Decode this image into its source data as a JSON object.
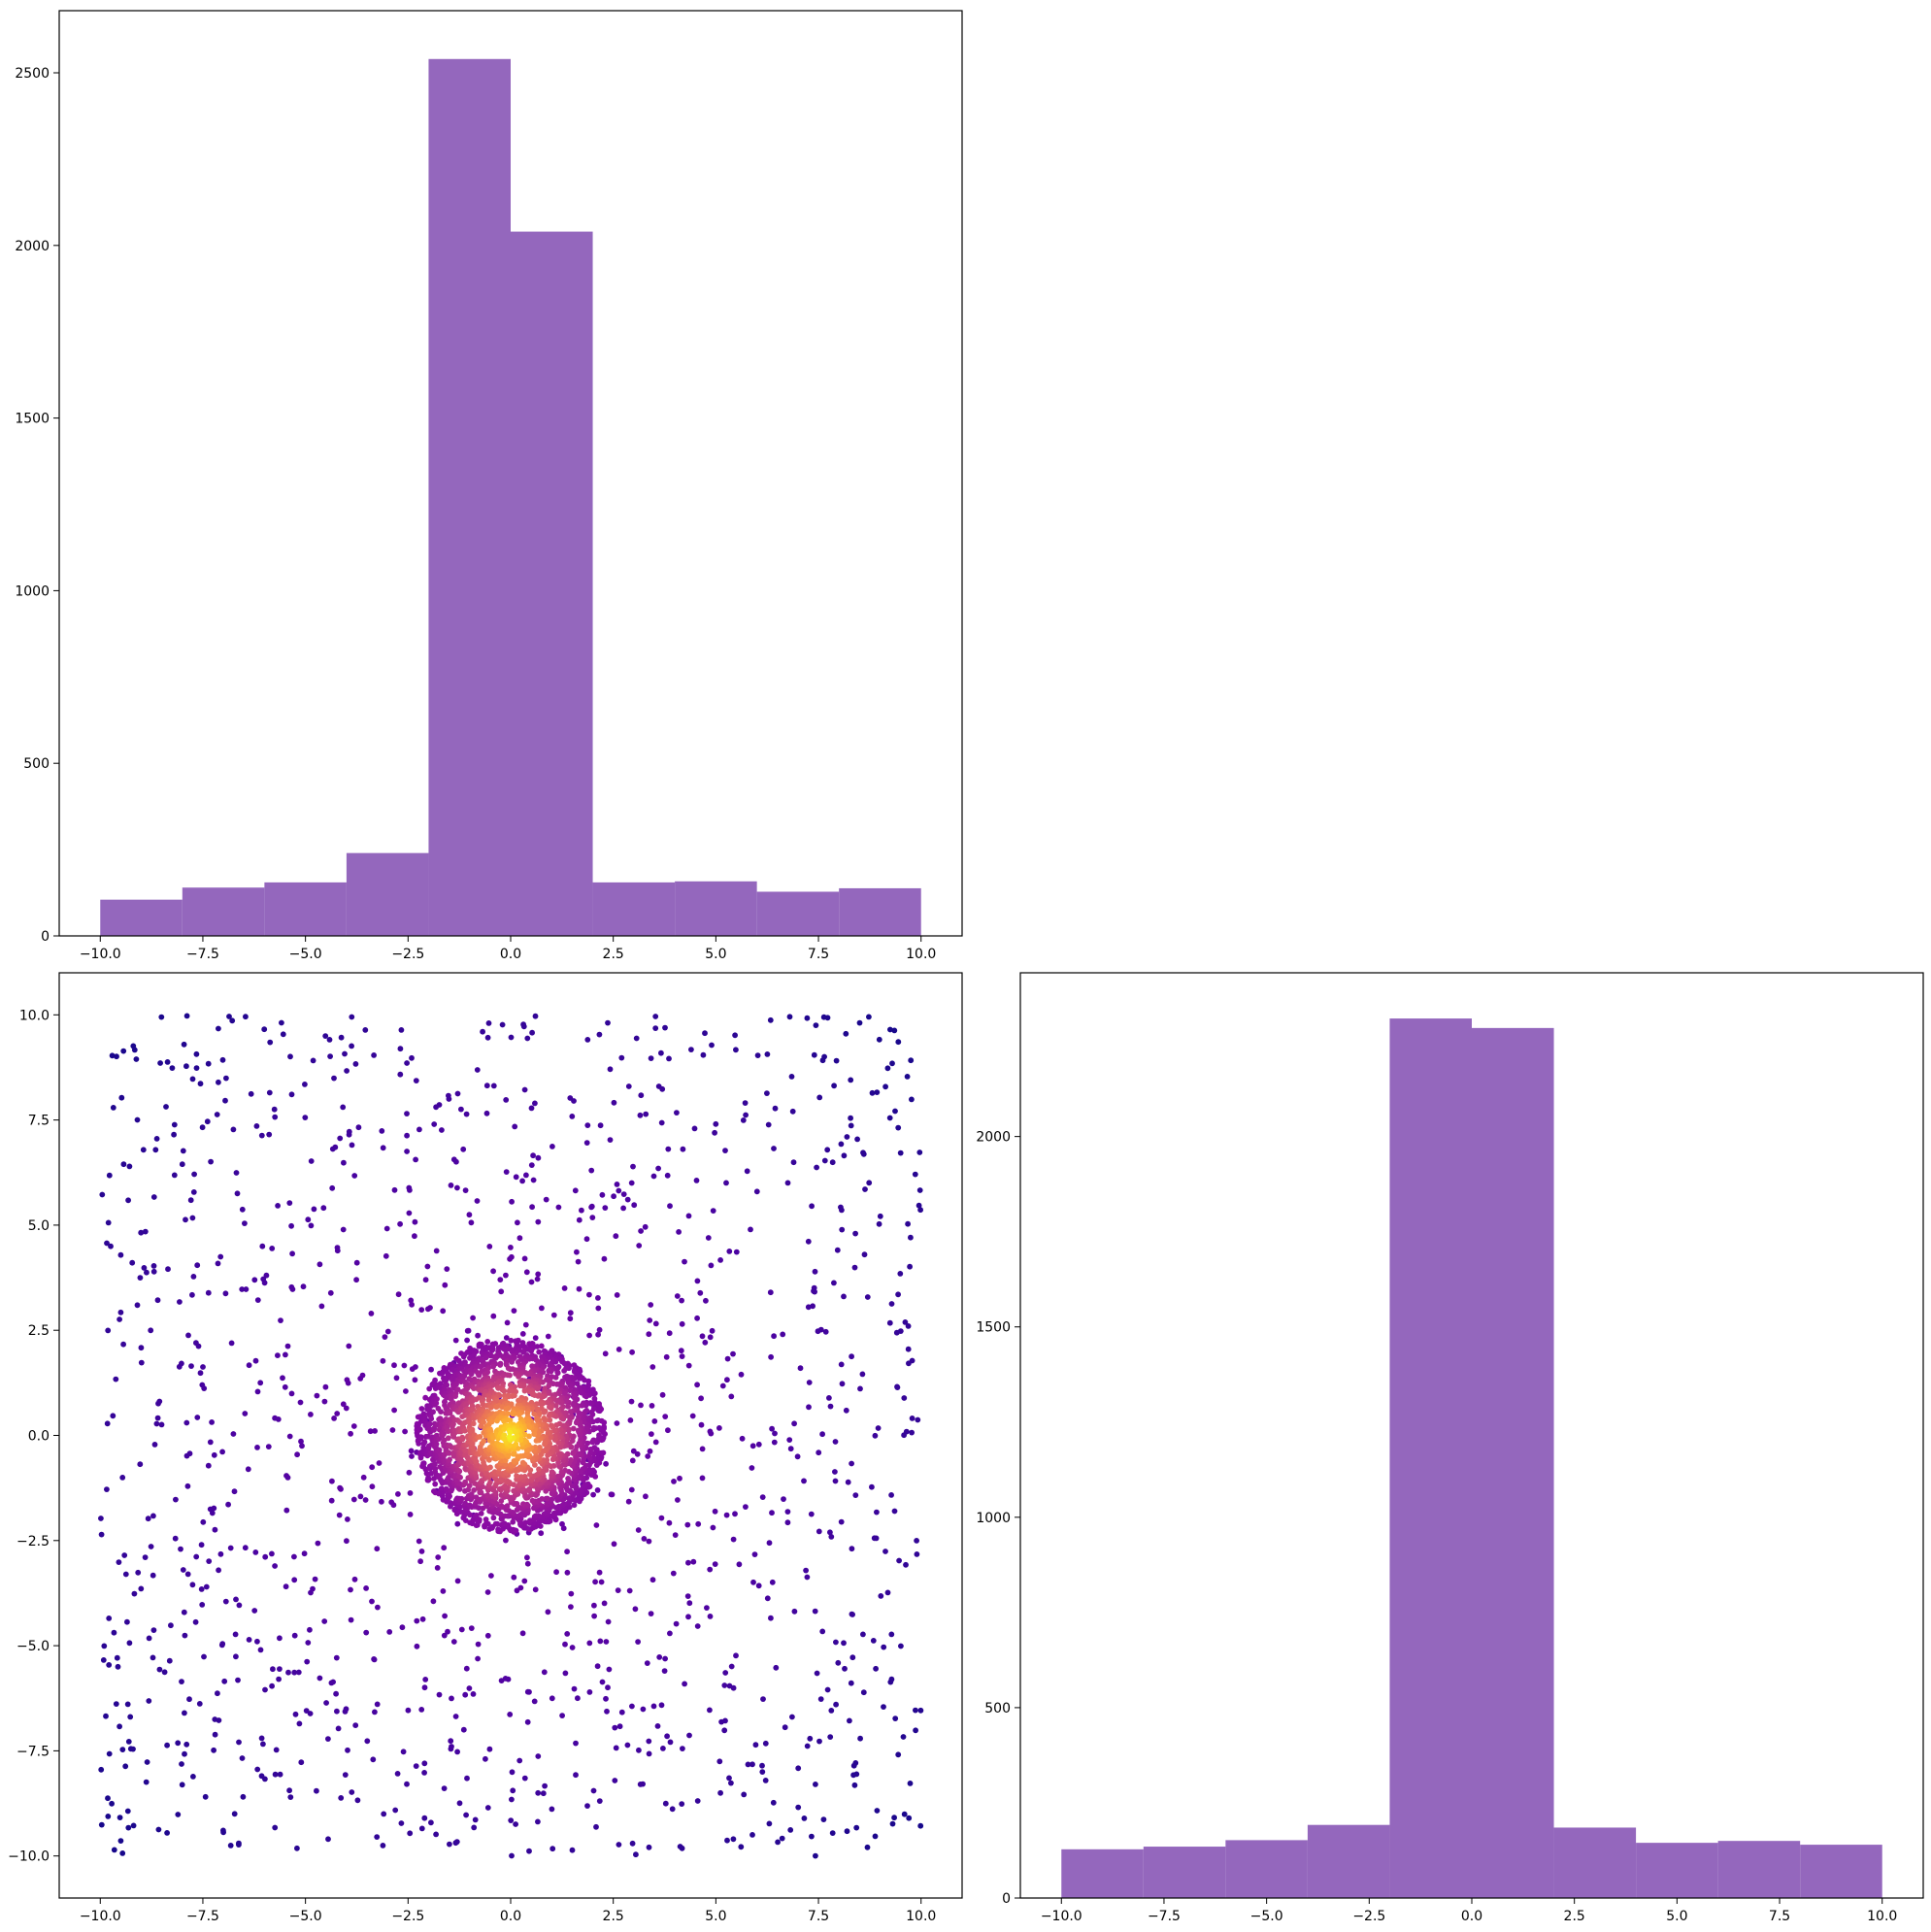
{
  "colors": {
    "bar": "#9467bd",
    "scatter_colormap": "plasma"
  },
  "chart_data": [
    {
      "id": "top-left-histogram",
      "type": "bar",
      "title": "",
      "xlabel": "",
      "ylabel": "",
      "bin_edges": [
        -10,
        -8,
        -6,
        -4,
        -2,
        0,
        2,
        4,
        6,
        8,
        10
      ],
      "values": [
        105,
        140,
        155,
        240,
        2540,
        2040,
        155,
        158,
        128,
        138
      ],
      "xlim": [
        -11,
        11
      ],
      "ylim": [
        0,
        2680
      ],
      "xticks": [
        -10,
        -7.5,
        -5,
        -2.5,
        0,
        2.5,
        5,
        7.5,
        10
      ],
      "xtick_labels": [
        "−10.0",
        "−7.5",
        "−5.0",
        "−2.5",
        "0.0",
        "2.5",
        "5.0",
        "7.5",
        "10.0"
      ],
      "yticks": [
        0,
        500,
        1000,
        1500,
        2000,
        2500
      ],
      "ytick_labels": [
        "0",
        "500",
        "1000",
        "1500",
        "2000",
        "2500"
      ],
      "grid": false
    },
    {
      "id": "bottom-left-scatter",
      "type": "scatter",
      "title": "",
      "xlabel": "",
      "ylabel": "",
      "xlim": [
        -11,
        11
      ],
      "ylim": [
        -11,
        11
      ],
      "xticks": [
        -10,
        -7.5,
        -5,
        -2.5,
        0,
        2.5,
        5,
        7.5,
        10
      ],
      "xtick_labels": [
        "−10.0",
        "−7.5",
        "−5.0",
        "−2.5",
        "0.0",
        "2.5",
        "5.0",
        "7.5",
        "10.0"
      ],
      "yticks": [
        -10,
        -7.5,
        -5,
        -2.5,
        0,
        2.5,
        5,
        7.5,
        10
      ],
      "ytick_labels": [
        "−10.0",
        "−7.5",
        "−5.0",
        "−2.5",
        "0.0",
        "2.5",
        "5.0",
        "7.5",
        "10.0"
      ],
      "uniform_points": 1300,
      "uniform_range": [
        -10,
        10
      ],
      "cluster_points": 2400,
      "cluster_center": [
        0,
        0
      ],
      "cluster_radius": 2.3,
      "color_by": "density",
      "grid": false
    },
    {
      "id": "bottom-right-histogram",
      "type": "bar",
      "title": "",
      "xlabel": "",
      "ylabel": "",
      "bin_edges": [
        -10,
        -8,
        -6,
        -4,
        -2,
        0,
        2,
        4,
        6,
        8,
        10
      ],
      "values": [
        128,
        135,
        152,
        192,
        2310,
        2285,
        185,
        145,
        150,
        140
      ],
      "xlim": [
        -11,
        11
      ],
      "ylim": [
        0,
        2430
      ],
      "xticks": [
        -10,
        -7.5,
        -5,
        -2.5,
        0,
        2.5,
        5,
        7.5,
        10
      ],
      "xtick_labels": [
        "−10.0",
        "−7.5",
        "−5.0",
        "−2.5",
        "0.0",
        "2.5",
        "5.0",
        "7.5",
        "10.0"
      ],
      "yticks": [
        0,
        500,
        1000,
        1500,
        2000
      ],
      "ytick_labels": [
        "0",
        "500",
        "1000",
        "1500",
        "2000"
      ],
      "grid": false
    }
  ]
}
